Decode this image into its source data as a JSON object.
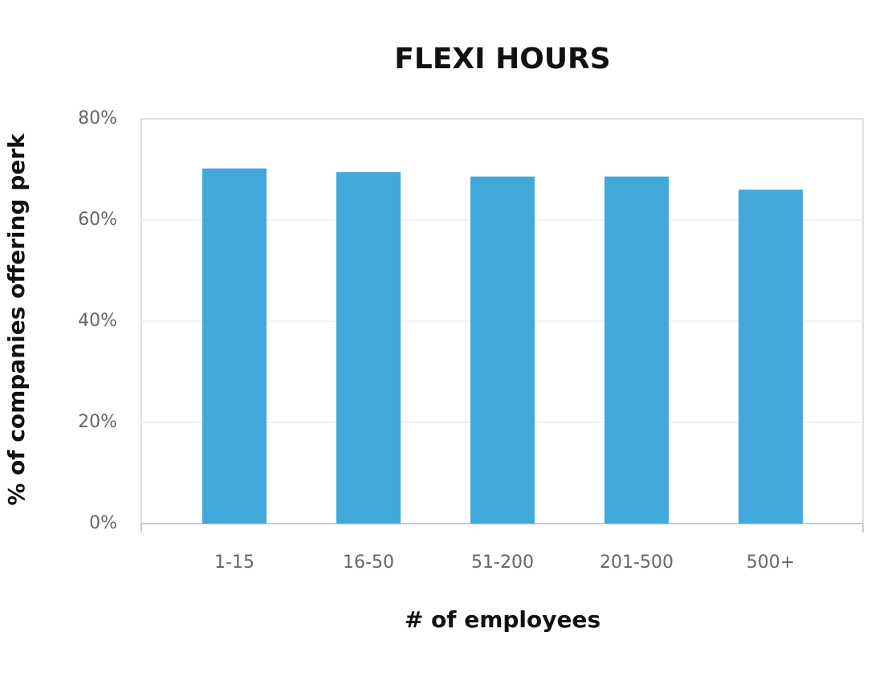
{
  "chart_data": {
    "type": "bar",
    "title": "FLEXI HOURS",
    "x_label": "# of employees",
    "y_label": "% of companies offering perk",
    "categories": [
      "1-15",
      "16-50",
      "51-200",
      "201-500",
      "500+"
    ],
    "values": [
      70.2,
      69.5,
      68.6,
      68.6,
      66
    ],
    "color": "#41a9d9",
    "ylim": [
      0,
      80
    ],
    "yticks": [
      {
        "value": 0,
        "label": "0%"
      },
      {
        "value": 20,
        "label": "20%"
      },
      {
        "value": 40,
        "label": "40%"
      },
      {
        "value": 60,
        "label": "60%"
      },
      {
        "value": 80,
        "label": "80%"
      }
    ],
    "grid": true
  }
}
